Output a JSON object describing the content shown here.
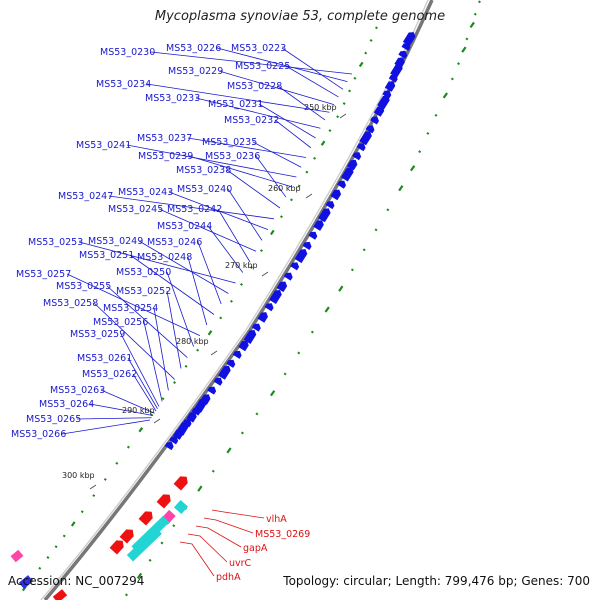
{
  "title": "Mycoplasma synoviae 53, complete genome",
  "footer": {
    "accession": "Accession: NC_007294",
    "stats": "Topology: circular; Length: 799,476 bp; Genes: 700"
  },
  "colors": {
    "forward_gene": "#1010e0",
    "highlight_gene": "#ee1111",
    "cyan_feature": "#22d4d4",
    "pink_feature": "#ff44aa",
    "backbone": "#777777",
    "gc_dots": "#1a8c1a",
    "label_blue": "#1a1acd",
    "label_red": "#dd1111"
  },
  "ticks": [
    "250 kbp",
    "260 kbp",
    "270 kbp",
    "280 kbp",
    "290 kbp",
    "300 kbp"
  ],
  "blue_labels": [
    "MS53_0230",
    "MS53_0226",
    "MS53_0223",
    "MS53_0225",
    "MS53_0229",
    "MS53_0234",
    "MS53_0228",
    "MS53_0233",
    "MS53_0231",
    "MS53_0232",
    "MS53_0237",
    "MS53_0235",
    "MS53_0241",
    "MS53_0239",
    "MS53_0236",
    "MS53_0238",
    "MS53_0247",
    "MS53_0243",
    "MS53_0240",
    "MS53_0245",
    "MS53_0242",
    "MS53_0244",
    "MS53_0253",
    "MS53_0249",
    "MS53_0246",
    "MS53_0251",
    "MS53_0248",
    "MS53_0257",
    "MS53_0250",
    "MS53_0255",
    "MS53_0252",
    "MS53_0258",
    "MS53_0254",
    "MS53_0256",
    "MS53_0259",
    "MS53_0261",
    "MS53_0262",
    "MS53_0263",
    "MS53_0264",
    "MS53_0265",
    "MS53_0266"
  ],
  "red_labels": [
    "vlhA",
    "MS53_0269",
    "gapA",
    "uvrC",
    "pdhA"
  ]
}
